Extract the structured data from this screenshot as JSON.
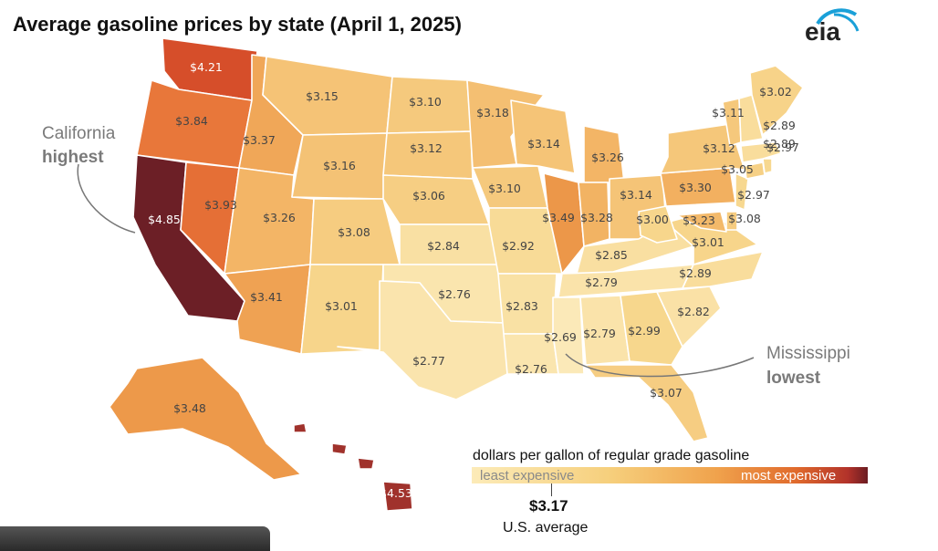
{
  "title": "Average gasoline prices by state (April 1, 2025)",
  "logo": {
    "text": "eia",
    "arc_color": "#1aa0d8"
  },
  "callouts": {
    "high": {
      "name": "California",
      "rank": "highest"
    },
    "low": {
      "name": "Mississippi",
      "rank": "lowest"
    }
  },
  "legend": {
    "title": "dollars per gallon of regular grade gasoline",
    "low_label": "least expensive",
    "high_label": "most expensive",
    "us_average_value": "$3.17",
    "us_average_label": "U.S. average",
    "color_stops": [
      "#fcebb8",
      "#f6cf7c",
      "#f0a24c",
      "#e06a2c",
      "#b2322a",
      "#6b1c22"
    ]
  },
  "states": [
    {
      "name": "Washington",
      "price": "$4.21",
      "value": 4.21
    },
    {
      "name": "Oregon",
      "price": "$3.84",
      "value": 3.84
    },
    {
      "name": "California",
      "price": "$4.85",
      "value": 4.85
    },
    {
      "name": "Nevada",
      "price": "$3.93",
      "value": 3.93
    },
    {
      "name": "Idaho",
      "price": "$3.37",
      "value": 3.37
    },
    {
      "name": "Utah",
      "price": "$3.26",
      "value": 3.26
    },
    {
      "name": "Arizona",
      "price": "$3.41",
      "value": 3.41
    },
    {
      "name": "Montana",
      "price": "$3.15",
      "value": 3.15
    },
    {
      "name": "Wyoming",
      "price": "$3.16",
      "value": 3.16
    },
    {
      "name": "Colorado",
      "price": "$3.08",
      "value": 3.08
    },
    {
      "name": "New Mexico",
      "price": "$3.01",
      "value": 3.01
    },
    {
      "name": "North Dakota",
      "price": "$3.10",
      "value": 3.1
    },
    {
      "name": "South Dakota",
      "price": "$3.12",
      "value": 3.12
    },
    {
      "name": "Nebraska",
      "price": "$3.06",
      "value": 3.06
    },
    {
      "name": "Kansas",
      "price": "$2.84",
      "value": 2.84
    },
    {
      "name": "Oklahoma",
      "price": "$2.76",
      "value": 2.76
    },
    {
      "name": "Texas",
      "price": "$2.77",
      "value": 2.77
    },
    {
      "name": "Minnesota",
      "price": "$3.18",
      "value": 3.18
    },
    {
      "name": "Iowa",
      "price": "$3.10",
      "value": 3.1
    },
    {
      "name": "Missouri",
      "price": "$2.92",
      "value": 2.92
    },
    {
      "name": "Arkansas",
      "price": "$2.83",
      "value": 2.83
    },
    {
      "name": "Louisiana",
      "price": "$2.76",
      "value": 2.76
    },
    {
      "name": "Wisconsin",
      "price": "$3.14",
      "value": 3.14
    },
    {
      "name": "Illinois",
      "price": "$3.49",
      "value": 3.49
    },
    {
      "name": "Michigan",
      "price": "$3.26",
      "value": 3.26
    },
    {
      "name": "Indiana",
      "price": "$3.28",
      "value": 3.28
    },
    {
      "name": "Ohio",
      "price": "$3.14",
      "value": 3.14
    },
    {
      "name": "Kentucky",
      "price": "$2.85",
      "value": 2.85
    },
    {
      "name": "Tennessee",
      "price": "$2.79",
      "value": 2.79
    },
    {
      "name": "Mississippi",
      "price": "$2.69",
      "value": 2.69
    },
    {
      "name": "Alabama",
      "price": "$2.79",
      "value": 2.79
    },
    {
      "name": "Georgia",
      "price": "$2.99",
      "value": 2.99
    },
    {
      "name": "Florida",
      "price": "$3.07",
      "value": 3.07
    },
    {
      "name": "South Carolina",
      "price": "$2.82",
      "value": 2.82
    },
    {
      "name": "North Carolina",
      "price": "$2.89",
      "value": 2.89
    },
    {
      "name": "Virginia",
      "price": "$3.01",
      "value": 3.01
    },
    {
      "name": "West Virginia",
      "price": "$3.00",
      "value": 3.0
    },
    {
      "name": "Maryland",
      "price": "$3.23",
      "value": 3.23
    },
    {
      "name": "Delaware",
      "price": "$3.08",
      "value": 3.08
    },
    {
      "name": "Pennsylvania",
      "price": "$3.30",
      "value": 3.3
    },
    {
      "name": "New Jersey",
      "price": "$2.97",
      "value": 2.97
    },
    {
      "name": "New York",
      "price": "$3.12",
      "value": 3.12
    },
    {
      "name": "Connecticut",
      "price": "$3.05",
      "value": 3.05
    },
    {
      "name": "Rhode Island",
      "price": "$2.97",
      "value": 2.97
    },
    {
      "name": "Massachusetts",
      "price": "$2.89",
      "value": 2.89
    },
    {
      "name": "Vermont",
      "price": "$3.11",
      "value": 3.11
    },
    {
      "name": "New Hampshire",
      "price": "$2.89",
      "value": 2.89
    },
    {
      "name": "Maine",
      "price": "$3.02",
      "value": 3.02
    },
    {
      "name": "Alaska",
      "price": "$3.48",
      "value": 3.48
    },
    {
      "name": "Hawaii",
      "price": "$4.53",
      "value": 4.53
    }
  ]
}
